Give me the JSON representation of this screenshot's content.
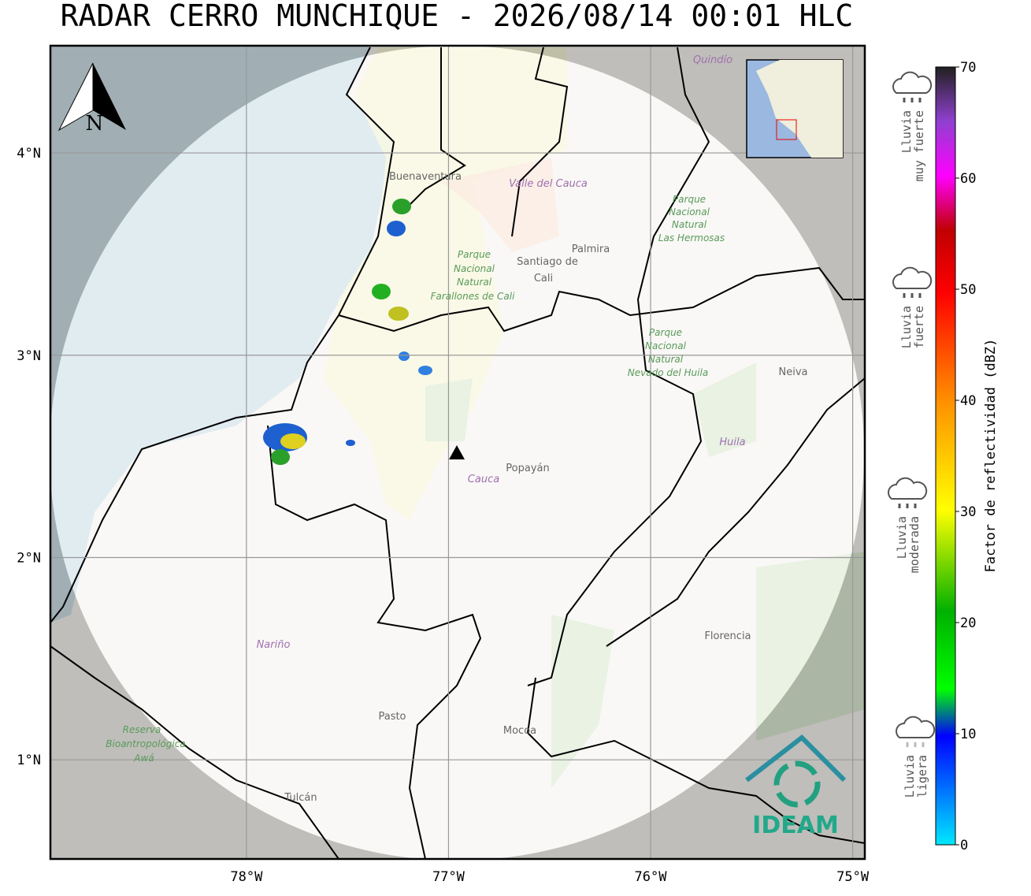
{
  "title": "RADAR CERRO MUNCHIQUE - 2026/08/14 00:01 HLC",
  "map": {
    "xlim": [
      -78.97,
      -74.94
    ],
    "ylim": [
      0.51,
      4.53
    ],
    "xticks": [
      {
        "value": -78,
        "label": "78°W"
      },
      {
        "value": -77,
        "label": "77°W"
      },
      {
        "value": -76,
        "label": "76°W"
      },
      {
        "value": -75,
        "label": "75°W"
      }
    ],
    "yticks": [
      {
        "value": 1,
        "label": "1°N"
      },
      {
        "value": 2,
        "label": "2°N"
      },
      {
        "value": 3,
        "label": "3°N"
      },
      {
        "value": 4,
        "label": "4°N"
      }
    ],
    "places": [
      "Santiago de",
      "Cali",
      "Palmira",
      "Popayán",
      "Cauca",
      "Neiva",
      "Huila",
      "Florencia",
      "Nariño",
      "Pasto",
      "Mocoa",
      "Tulcán",
      "Buenaventura",
      "Valle del Cauca",
      "Quindío",
      "Parque",
      "Nacional",
      "Natural",
      "Farallones de Cali",
      "Parque",
      "Nacional",
      "Natural",
      "Las Hermosas",
      "Parque",
      "Nacional",
      "Natural",
      "Nevado del Huila",
      "Reserva",
      "Bioantropológica",
      "Awá"
    ],
    "north": "N",
    "logo": "IDEAM"
  },
  "colorbar": {
    "label": "Factor de reflectividad (dBZ)",
    "ticks": [
      0,
      10,
      20,
      30,
      40,
      50,
      60,
      70
    ],
    "lim": [
      0,
      70
    ]
  },
  "legend": [
    {
      "lines": [
        "Lluvia",
        "muy fuerte"
      ]
    },
    {
      "lines": [
        "Lluvia",
        "fuerte"
      ]
    },
    {
      "lines": [
        "Lluvia",
        "moderada"
      ]
    },
    {
      "lines": [
        "Lluvia",
        "ligera"
      ]
    }
  ]
}
